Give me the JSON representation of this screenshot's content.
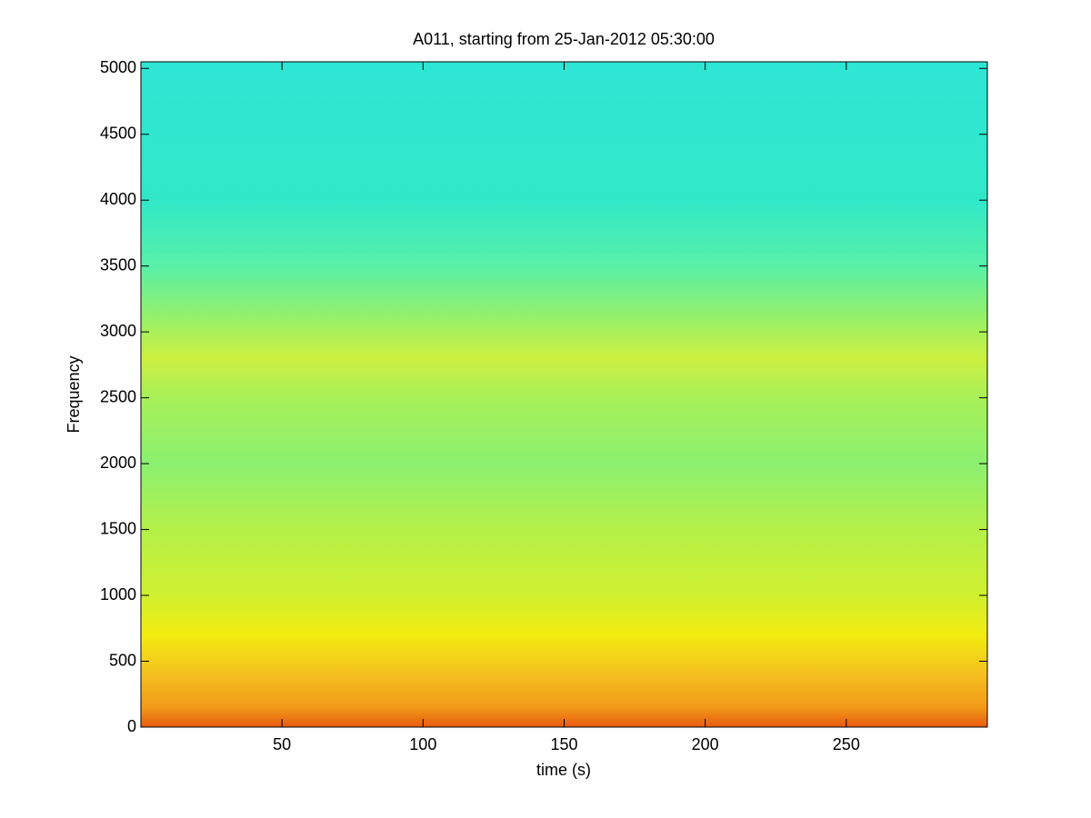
{
  "chart_data": {
    "type": "spectrogram",
    "title": "A011, starting from 25-Jan-2012 05:30:00",
    "x_label": "time (s)",
    "y_label": "Frequency",
    "xlim": [
      0,
      300
    ],
    "xticks": [
      50,
      100,
      150,
      200,
      250
    ],
    "ylim": [
      0,
      5050
    ],
    "yticks": [
      0,
      500,
      1000,
      1500,
      2000,
      2500,
      3000,
      3500,
      4000,
      4500,
      5000
    ],
    "spectrum": {
      "frequencies": [
        0,
        150,
        400,
        700,
        1000,
        1500,
        2000,
        2500,
        2800,
        3100,
        3500,
        4000,
        5050
      ],
      "colors": [
        "#e85a10",
        "#f29a18",
        "#f4c020",
        "#f2ec10",
        "#d0f030",
        "#b4f048",
        "#8cf070",
        "#a8f058",
        "#ccf040",
        "#98f068",
        "#58f0a8",
        "#30e8c8",
        "#2ee6d4"
      ]
    }
  }
}
